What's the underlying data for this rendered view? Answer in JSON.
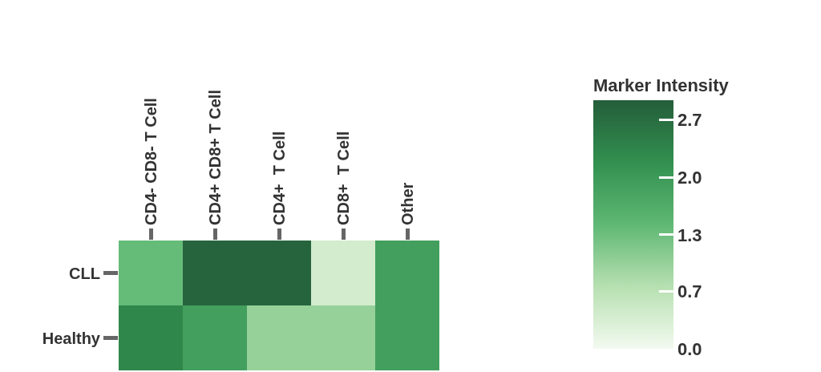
{
  "chart_data": {
    "type": "heatmap",
    "categories": [
      "CD4- CD8- T Cell",
      "CD4+ CD8+ T Cell",
      "CD4+  T Cell",
      "CD8+  T Cell",
      "Other"
    ],
    "y_categories": [
      "CLL",
      "Healthy"
    ],
    "cells": [
      [
        1.4,
        2.8,
        2.8,
        0.4,
        1.9
      ],
      [
        2.3,
        1.9,
        1.0,
        1.0,
        1.9
      ]
    ],
    "clabel": "Marker Intensity",
    "clim": [
      0,
      2.9
    ],
    "cticks": [
      {
        "value": 0,
        "label": "0.0"
      },
      {
        "value": 0.67,
        "label": "0.7"
      },
      {
        "value": 1.33,
        "label": "1.3"
      },
      {
        "value": 2,
        "label": "2.0"
      },
      {
        "value": 2.67,
        "label": "2.7"
      }
    ]
  }
}
